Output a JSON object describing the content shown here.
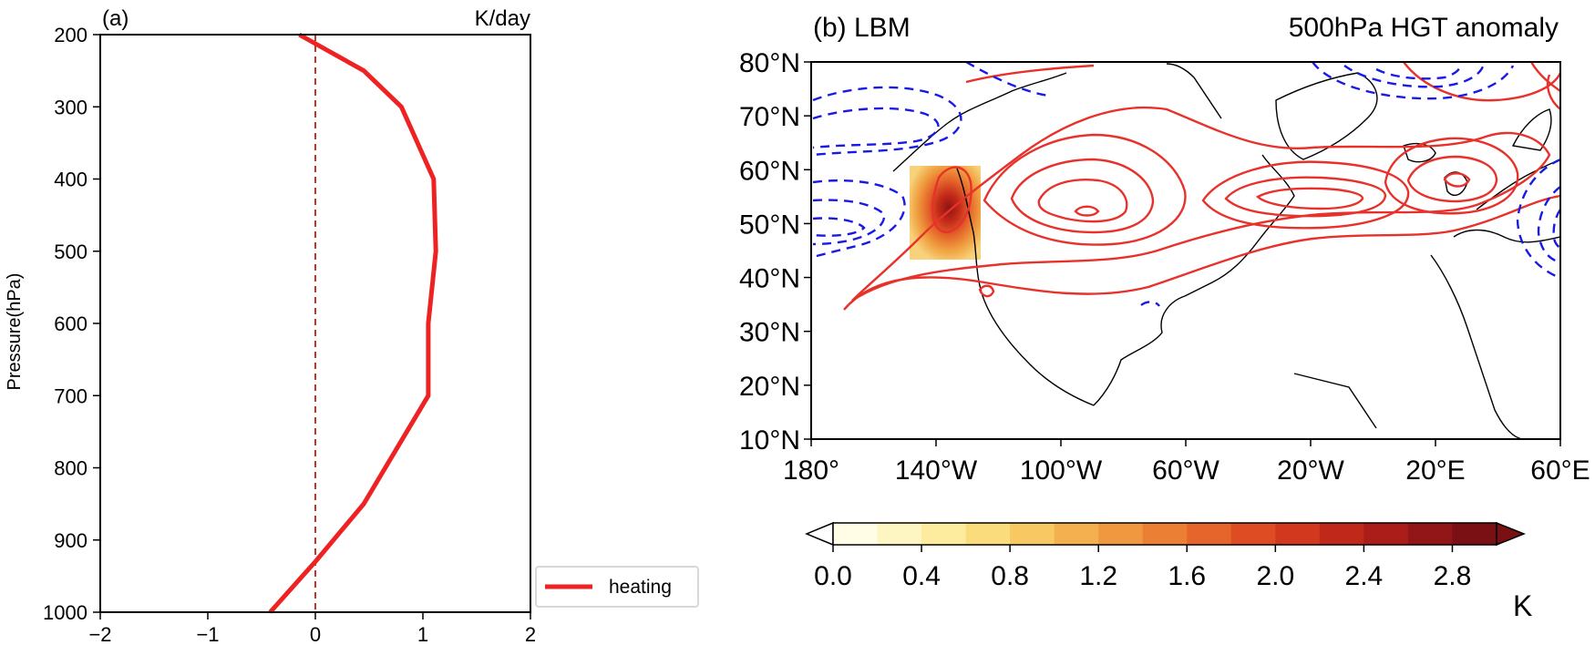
{
  "chart_data": [
    {
      "type": "line",
      "panel_label": "(a)",
      "units_label": "K/day",
      "ylabel": "Pressure(hPa)",
      "xlabel": "",
      "xlim": [
        -2,
        2
      ],
      "ylim": [
        1000,
        200
      ],
      "x_ticks": [
        -2,
        -1,
        0,
        1,
        2
      ],
      "x_tick_labels": [
        "−2",
        "−1",
        "0",
        "1",
        "2"
      ],
      "y_ticks": [
        200,
        300,
        400,
        500,
        600,
        700,
        800,
        900,
        1000
      ],
      "y_tick_labels": [
        "200",
        "300",
        "400",
        "500",
        "600",
        "700",
        "800",
        "900",
        "1000"
      ],
      "reference_line_x": 0,
      "series": [
        {
          "name": "heating",
          "color": "#ee2222",
          "points": [
            {
              "x": -0.15,
              "y": 200
            },
            {
              "x": 0.45,
              "y": 250
            },
            {
              "x": 0.8,
              "y": 300
            },
            {
              "x": 1.1,
              "y": 400
            },
            {
              "x": 1.12,
              "y": 500
            },
            {
              "x": 1.05,
              "y": 600
            },
            {
              "x": 1.05,
              "y": 700
            },
            {
              "x": 0.45,
              "y": 850
            },
            {
              "x": 0.0,
              "y": 930
            },
            {
              "x": -0.42,
              "y": 1000
            }
          ]
        }
      ],
      "legend": {
        "label": "heating",
        "position": "bottom-right"
      }
    },
    {
      "type": "contour-map",
      "panel_label": "(b) LBM",
      "title": "500hPa HGT anomaly",
      "lat_range": [
        10,
        80
      ],
      "lon_range": [
        -180,
        60
      ],
      "lat_tick_labels": [
        "80°N",
        "70°N",
        "60°N",
        "50°N",
        "40°N",
        "30°N",
        "20°N",
        "10°N"
      ],
      "lon_tick_labels": [
        "180°",
        "140°W",
        "100°W",
        "60°W",
        "20°W",
        "20°E",
        "60°E"
      ],
      "positive_contour_color": "#e8312a",
      "negative_contour_color": "#1a1ae6",
      "heating_region": {
        "lon_range": [
          -150,
          -123
        ],
        "lat_range": [
          43,
          60
        ],
        "max_value": 2.9
      },
      "colorbar": {
        "ticks": [
          "0.0",
          "0.4",
          "0.8",
          "1.2",
          "1.6",
          "2.0",
          "2.4",
          "2.8"
        ],
        "min": 0.0,
        "max": 3.0,
        "unit": "K",
        "colors": [
          "#fffde6",
          "#fef6c2",
          "#fdec9e",
          "#fbdc7c",
          "#f8c862",
          "#f4b04e",
          "#f0983f",
          "#eb7f33",
          "#e5652a",
          "#dd4c22",
          "#d1381d",
          "#c0281a",
          "#aa1d18",
          "#921517",
          "#7a1014"
        ]
      }
    }
  ]
}
